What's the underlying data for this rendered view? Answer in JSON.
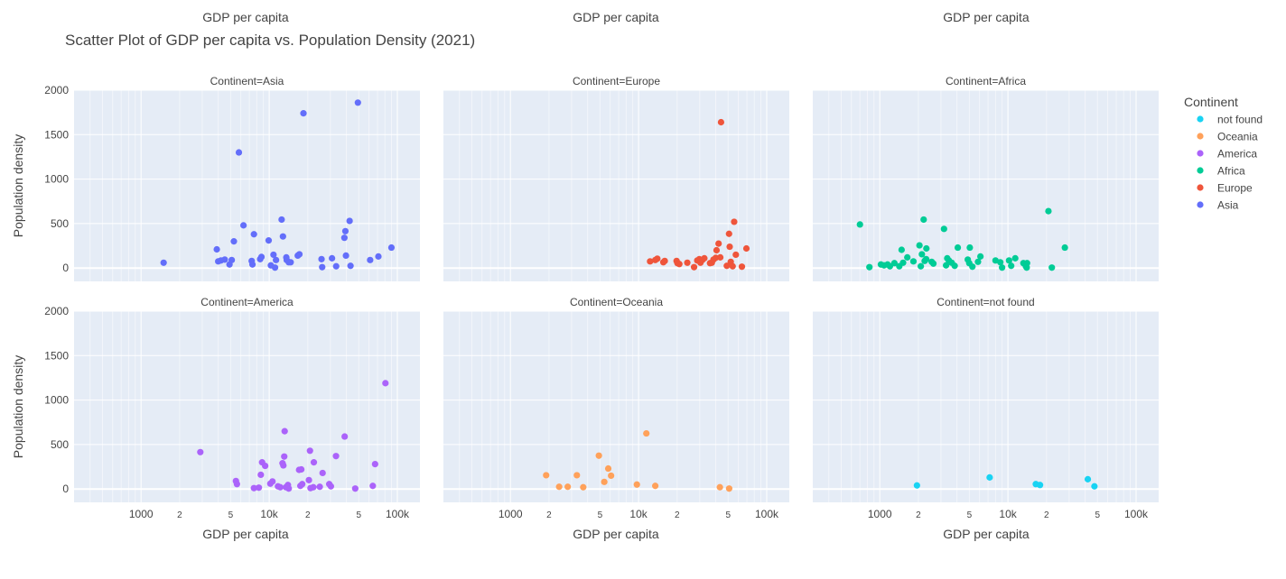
{
  "chart_data": {
    "type": "scatter",
    "title": "Scatter Plot of GDP per capita vs. Population Density (2021)",
    "xlabel": "GDP per capita",
    "ylabel": "Population density",
    "x_scale": "log",
    "xlim": [
      300,
      150000
    ],
    "ylim": [
      -150,
      2000
    ],
    "x_tick_labels": [
      "1000",
      "2",
      "5",
      "10k",
      "2",
      "5",
      "100k"
    ],
    "y_ticks": [
      0,
      500,
      1000,
      1500,
      2000
    ],
    "grid": true,
    "legend": {
      "title": "Continent",
      "placement": "right",
      "entries": [
        "not found",
        "Oceania",
        "America",
        "Africa",
        "Europe",
        "Asia"
      ]
    },
    "colors": {
      "Asia": "#636efa",
      "Europe": "#ef553b",
      "Africa": "#00cc96",
      "America": "#ab63fa",
      "Oceania": "#ffa15a",
      "not found": "#19d3f3"
    },
    "panels": [
      {
        "title": "Continent=Asia",
        "series": "Asia",
        "points": [
          [
            1500,
            60
          ],
          [
            3900,
            210
          ],
          [
            4000,
            75
          ],
          [
            4200,
            85
          ],
          [
            4500,
            95
          ],
          [
            4900,
            40
          ],
          [
            5100,
            90
          ],
          [
            5300,
            300
          ],
          [
            5800,
            1300
          ],
          [
            6300,
            480
          ],
          [
            7300,
            80
          ],
          [
            7400,
            40
          ],
          [
            7600,
            380
          ],
          [
            8500,
            100
          ],
          [
            8700,
            125
          ],
          [
            9900,
            310
          ],
          [
            10300,
            30
          ],
          [
            10800,
            150
          ],
          [
            11100,
            5
          ],
          [
            11300,
            90
          ],
          [
            12500,
            545
          ],
          [
            12800,
            355
          ],
          [
            13600,
            120
          ],
          [
            13700,
            90
          ],
          [
            14200,
            65
          ],
          [
            14700,
            65
          ],
          [
            16700,
            140
          ],
          [
            17200,
            155
          ],
          [
            18500,
            1740
          ],
          [
            25600,
            100
          ],
          [
            25900,
            10
          ],
          [
            30900,
            110
          ],
          [
            33300,
            20
          ],
          [
            38600,
            340
          ],
          [
            39300,
            415
          ],
          [
            39700,
            140
          ],
          [
            42400,
            530
          ],
          [
            43100,
            25
          ],
          [
            49200,
            1860
          ],
          [
            61300,
            90
          ],
          [
            71100,
            130
          ],
          [
            89900,
            230
          ]
        ]
      },
      {
        "title": "Continent=Europe",
        "series": "Europe",
        "points": [
          [
            12300,
            75
          ],
          [
            13500,
            90
          ],
          [
            14000,
            105
          ],
          [
            15600,
            65
          ],
          [
            16000,
            80
          ],
          [
            19800,
            80
          ],
          [
            20100,
            55
          ],
          [
            20800,
            45
          ],
          [
            24000,
            60
          ],
          [
            27100,
            10
          ],
          [
            28700,
            85
          ],
          [
            29800,
            100
          ],
          [
            30400,
            60
          ],
          [
            31400,
            90
          ],
          [
            32600,
            110
          ],
          [
            36100,
            55
          ],
          [
            37300,
            60
          ],
          [
            38400,
            95
          ],
          [
            40000,
            115
          ],
          [
            40600,
            200
          ],
          [
            42100,
            275
          ],
          [
            43400,
            120
          ],
          [
            44000,
            1640
          ],
          [
            48800,
            25
          ],
          [
            50800,
            385
          ],
          [
            51400,
            240
          ],
          [
            52400,
            70
          ],
          [
            54200,
            20
          ],
          [
            55700,
            520
          ],
          [
            57400,
            150
          ],
          [
            64000,
            15
          ],
          [
            69400,
            220
          ]
        ]
      },
      {
        "title": "Continent=Africa",
        "series": "Africa",
        "points": [
          [
            700,
            490
          ],
          [
            830,
            10
          ],
          [
            1020,
            40
          ],
          [
            1080,
            30
          ],
          [
            1150,
            40
          ],
          [
            1200,
            20
          ],
          [
            1300,
            55
          ],
          [
            1420,
            20
          ],
          [
            1480,
            205
          ],
          [
            1520,
            60
          ],
          [
            1640,
            120
          ],
          [
            1830,
            75
          ],
          [
            2040,
            255
          ],
          [
            2090,
            20
          ],
          [
            2130,
            155
          ],
          [
            2200,
            545
          ],
          [
            2240,
            80
          ],
          [
            2300,
            100
          ],
          [
            2310,
            220
          ],
          [
            2540,
            70
          ],
          [
            2620,
            50
          ],
          [
            3170,
            440
          ],
          [
            3290,
            30
          ],
          [
            3360,
            110
          ],
          [
            3460,
            85
          ],
          [
            3640,
            60
          ],
          [
            3840,
            25
          ],
          [
            4060,
            230
          ],
          [
            4860,
            95
          ],
          [
            4990,
            55
          ],
          [
            5040,
            230
          ],
          [
            5280,
            15
          ],
          [
            5840,
            70
          ],
          [
            6100,
            130
          ],
          [
            8000,
            85
          ],
          [
            8720,
            65
          ],
          [
            9000,
            5
          ],
          [
            10200,
            85
          ],
          [
            10600,
            25
          ],
          [
            11400,
            110
          ],
          [
            13200,
            55
          ],
          [
            13800,
            20
          ],
          [
            14000,
            5
          ],
          [
            14100,
            55
          ],
          [
            20700,
            640
          ],
          [
            22000,
            5
          ],
          [
            27800,
            230
          ]
        ]
      },
      {
        "title": "Continent=America",
        "series": "America",
        "points": [
          [
            2900,
            415
          ],
          [
            5500,
            90
          ],
          [
            5600,
            55
          ],
          [
            7600,
            10
          ],
          [
            8300,
            15
          ],
          [
            8600,
            160
          ],
          [
            8800,
            300
          ],
          [
            9300,
            260
          ],
          [
            10200,
            60
          ],
          [
            10600,
            85
          ],
          [
            11700,
            30
          ],
          [
            12200,
            20
          ],
          [
            12700,
            290
          ],
          [
            12900,
            265
          ],
          [
            13100,
            365
          ],
          [
            13200,
            650
          ],
          [
            13500,
            20
          ],
          [
            14000,
            45
          ],
          [
            14200,
            5
          ],
          [
            17100,
            215
          ],
          [
            17500,
            35
          ],
          [
            17800,
            220
          ],
          [
            18100,
            55
          ],
          [
            20400,
            100
          ],
          [
            20800,
            430
          ],
          [
            21000,
            10
          ],
          [
            22100,
            20
          ],
          [
            22300,
            300
          ],
          [
            24800,
            25
          ],
          [
            26100,
            180
          ],
          [
            29400,
            55
          ],
          [
            30300,
            30
          ],
          [
            33200,
            370
          ],
          [
            38800,
            590
          ],
          [
            46900,
            5
          ],
          [
            64300,
            35
          ],
          [
            67000,
            280
          ],
          [
            80700,
            1190
          ]
        ]
      },
      {
        "title": "Continent=Oceania",
        "series": "Oceania",
        "points": [
          [
            1900,
            155
          ],
          [
            2400,
            25
          ],
          [
            2800,
            25
          ],
          [
            3300,
            155
          ],
          [
            3700,
            20
          ],
          [
            4900,
            375
          ],
          [
            5400,
            80
          ],
          [
            5800,
            230
          ],
          [
            6100,
            150
          ],
          [
            9700,
            50
          ],
          [
            11500,
            625
          ],
          [
            13500,
            35
          ],
          [
            43100,
            20
          ],
          [
            50900,
            5
          ]
        ]
      },
      {
        "title": "Continent=not found",
        "series": "not found",
        "points": [
          [
            1950,
            40
          ],
          [
            7200,
            130
          ],
          [
            16500,
            55
          ],
          [
            17800,
            45
          ],
          [
            42000,
            110
          ],
          [
            47300,
            30
          ]
        ]
      }
    ]
  }
}
